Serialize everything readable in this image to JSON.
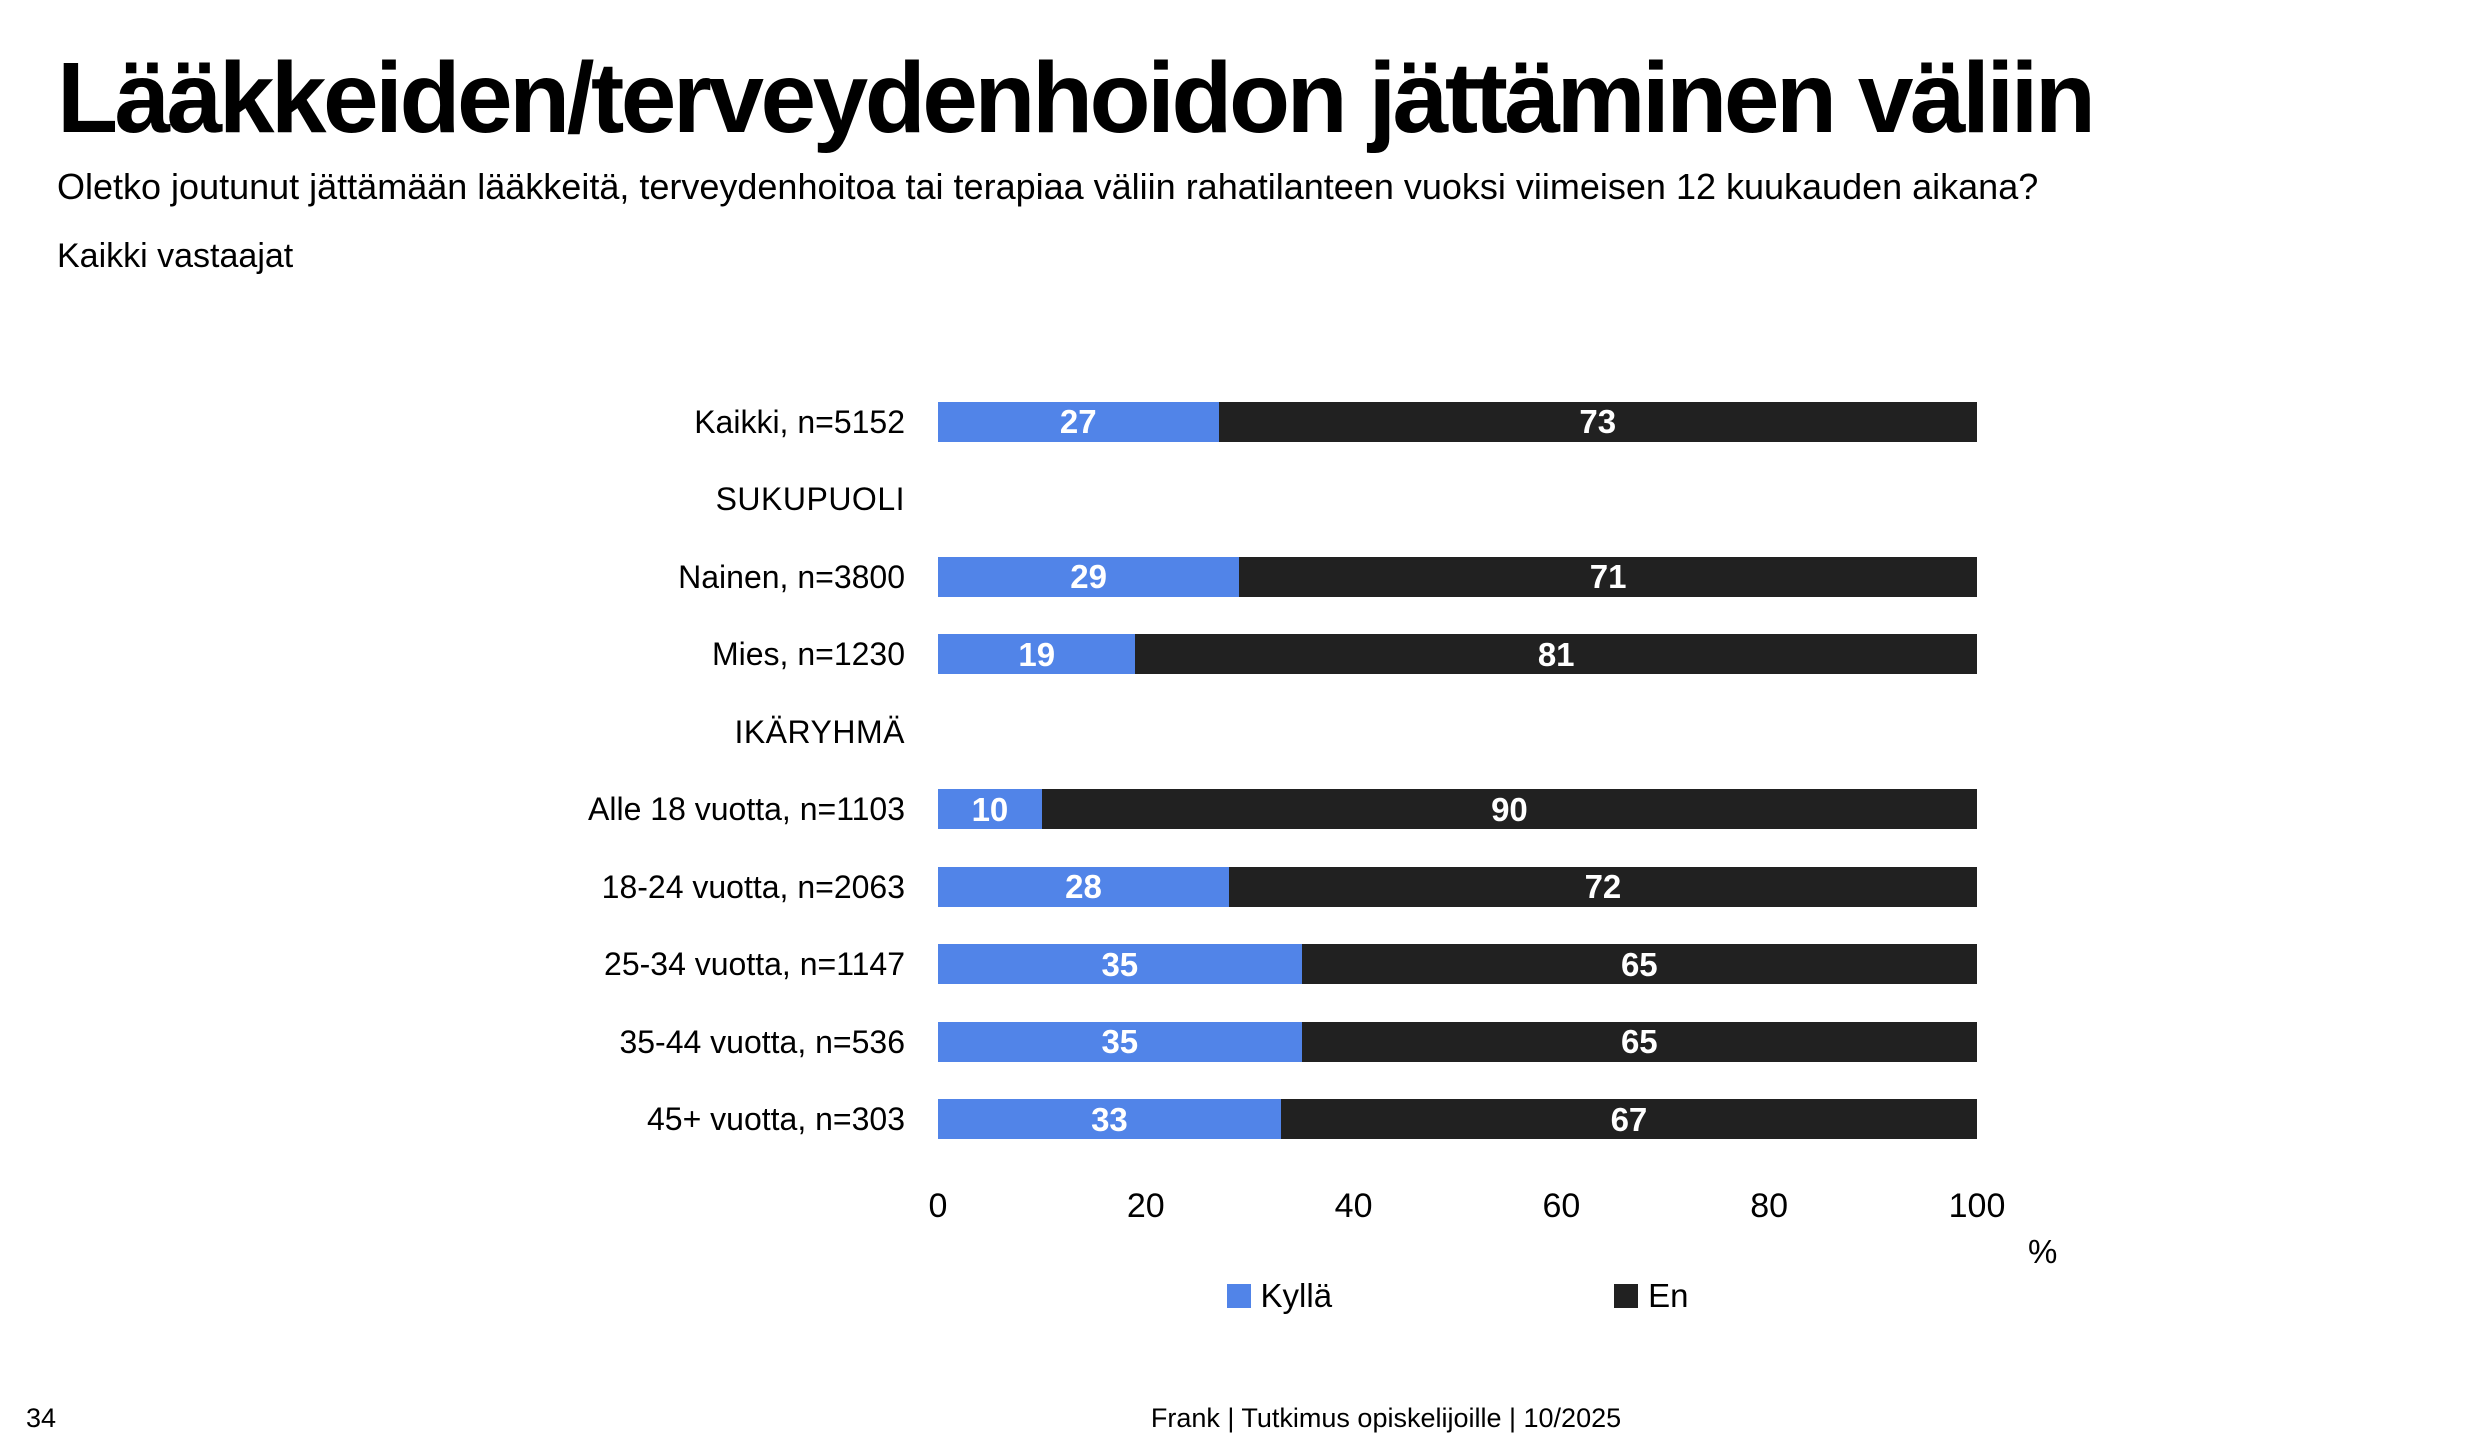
{
  "header": {
    "title": "Lääkkeiden/terveydenhoidon jättäminen väliin",
    "question": "Oletko joutunut jättämään lääkkeitä, terveydenhoitoa tai terapiaa väliin rahatilanteen vuoksi viimeisen 12 kuukauden aikana?",
    "audience": "Kaikki vastaajat"
  },
  "chart_data": {
    "type": "bar",
    "subtype": "horizontal-stacked-100",
    "unit": "%",
    "xlim": [
      0,
      100
    ],
    "x_ticks": [
      0,
      20,
      40,
      60,
      80,
      100
    ],
    "grid": "off",
    "legend_position": "bottom",
    "legend": [
      {
        "name": "Kyllä",
        "color": "#5184E8"
      },
      {
        "name": "En",
        "color": "#212121"
      }
    ],
    "rows": [
      {
        "type": "bar",
        "label": "Kaikki, n=5152",
        "yes": 27,
        "no": 73
      },
      {
        "type": "header",
        "label": "SUKUPUOLI"
      },
      {
        "type": "bar",
        "label": "Nainen, n=3800",
        "yes": 29,
        "no": 71
      },
      {
        "type": "bar",
        "label": "Mies, n=1230",
        "yes": 19,
        "no": 81
      },
      {
        "type": "header",
        "label": "IKÄRYHMÄ"
      },
      {
        "type": "bar",
        "label": "Alle 18 vuotta, n=1103",
        "yes": 10,
        "no": 90
      },
      {
        "type": "bar",
        "label": "18-24 vuotta, n=2063",
        "yes": 28,
        "no": 72
      },
      {
        "type": "bar",
        "label": "25-34 vuotta, n=1147",
        "yes": 35,
        "no": 65
      },
      {
        "type": "bar",
        "label": "35-44 vuotta, n=536",
        "yes": 35,
        "no": 65
      },
      {
        "type": "bar",
        "label": "45+ vuotta, n=303",
        "yes": 33,
        "no": 67
      }
    ]
  },
  "footer": {
    "page_number": "34",
    "source": "Frank | Tutkimus opiskelijoille | 10/2025"
  },
  "colors": {
    "background": "#ffffff",
    "text": "#000000",
    "bar_value_text": "#ffffff"
  }
}
